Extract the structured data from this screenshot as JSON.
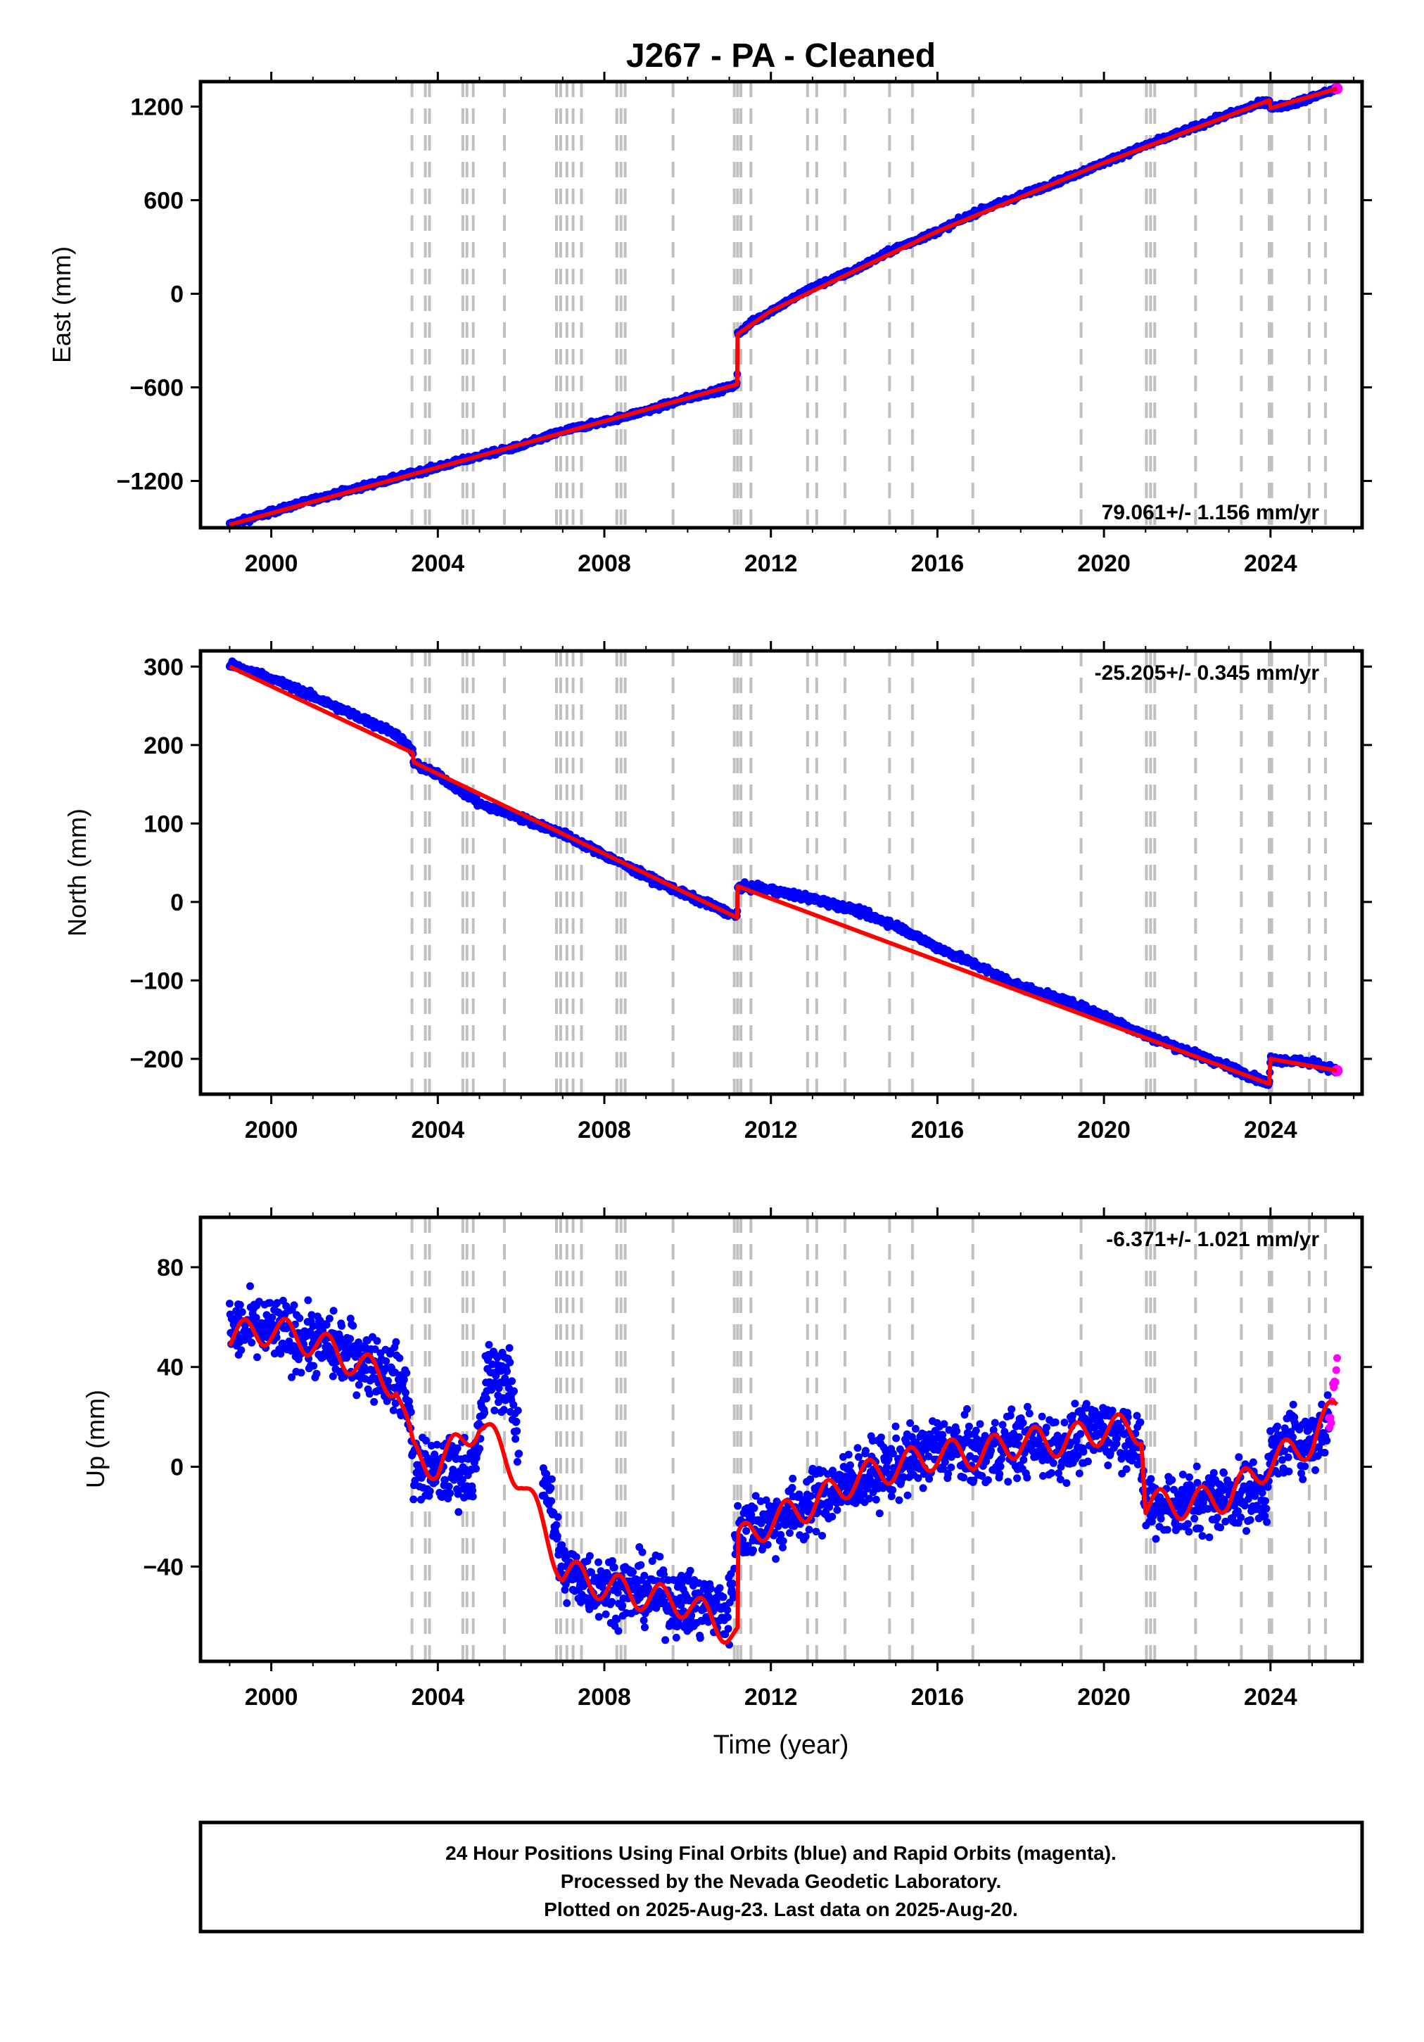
{
  "chart_data": [
    {
      "type": "scatter",
      "panel": "east",
      "title": "J267  - PA - Cleaned",
      "ylabel": "East (mm)",
      "xlabel": "",
      "xlim": [
        1998.3,
        2026.2
      ],
      "ylim": [
        -1500,
        1360
      ],
      "xticks": [
        2000,
        2004,
        2008,
        2012,
        2016,
        2020,
        2024
      ],
      "xtick_labels": [
        "2000",
        "2004",
        "2008",
        "2012",
        "2016",
        "2020",
        "2024"
      ],
      "yticks": [
        -1200,
        -600,
        0,
        600,
        1200
      ],
      "ytick_labels": [
        "−1200",
        "−600",
        "0",
        "600",
        "1200"
      ],
      "rate_label": "79.061+/- 1.156 mm/yr",
      "rate_position": "bottom-right",
      "grid": false,
      "series": [
        {
          "values": [
            [
              1999.0,
              -1480
            ],
            [
              2000.0,
              -1400
            ],
            [
              2001.0,
              -1320
            ],
            [
              2002.0,
              -1250
            ],
            [
              2003.0,
              -1180
            ],
            [
              2004.0,
              -1110
            ],
            [
              2005.0,
              -1040
            ],
            [
              2006.0,
              -975
            ],
            [
              2007.0,
              -880
            ],
            [
              2008.0,
              -820
            ],
            [
              2009.0,
              -750
            ],
            [
              2010.0,
              -670
            ],
            [
              2011.0,
              -600
            ],
            [
              2011.19,
              -580
            ],
            [
              2011.2,
              -260
            ],
            [
              2011.5,
              -190
            ],
            [
              2012.0,
              -110
            ],
            [
              2013.0,
              40
            ],
            [
              2014.0,
              150
            ],
            [
              2015.0,
              290
            ],
            [
              2016.0,
              400
            ],
            [
              2017.0,
              530
            ],
            [
              2018.0,
              630
            ],
            [
              2019.0,
              730
            ],
            [
              2020.0,
              840
            ],
            [
              2021.0,
              950
            ],
            [
              2022.0,
              1050
            ],
            [
              2023.0,
              1150
            ],
            [
              2023.97,
              1240
            ],
            [
              2024.0,
              1190
            ],
            [
              2024.5,
              1215
            ],
            [
              2025.0,
              1260
            ],
            [
              2025.6,
              1315
            ]
          ]
        },
        {
          "values": [
            [
              1999.0,
              -1480
            ],
            [
              2005.0,
              -1040
            ],
            [
              2011.19,
              -580
            ],
            [
              2011.2,
              -260
            ],
            [
              2012.0,
              -110
            ],
            [
              2016.0,
              400
            ],
            [
              2020.0,
              840
            ],
            [
              2023.97,
              1240
            ],
            [
              2024.0,
              1190
            ],
            [
              2025.6,
              1315
            ]
          ]
        }
      ]
    },
    {
      "type": "scatter",
      "panel": "north",
      "ylabel": "North (mm)",
      "xlabel": "",
      "xlim": [
        1998.3,
        2026.2
      ],
      "ylim": [
        -245,
        320
      ],
      "xticks": [
        2000,
        2004,
        2008,
        2012,
        2016,
        2020,
        2024
      ],
      "xtick_labels": [
        "2000",
        "2004",
        "2008",
        "2012",
        "2016",
        "2020",
        "2024"
      ],
      "yticks": [
        -200,
        -100,
        0,
        100,
        200,
        300
      ],
      "ytick_labels": [
        "−200",
        "−100",
        "0",
        "100",
        "200",
        "300"
      ],
      "rate_label": "-25.205+/- 0.345 mm/yr",
      "rate_position": "top-right",
      "grid": false,
      "series": [
        {
          "values": [
            [
              1999.0,
              303
            ],
            [
              2000.0,
              285
            ],
            [
              2001.0,
              262
            ],
            [
              2002.0,
              238
            ],
            [
              2003.0,
              214
            ],
            [
              2003.4,
              192
            ],
            [
              2003.42,
              176
            ],
            [
              2004.0,
              162
            ],
            [
              2005.0,
              125
            ],
            [
              2006.0,
              107
            ],
            [
              2007.0,
              87
            ],
            [
              2008.0,
              60
            ],
            [
              2009.0,
              33
            ],
            [
              2010.0,
              8
            ],
            [
              2011.0,
              -14
            ],
            [
              2011.19,
              -20
            ],
            [
              2011.2,
              20
            ],
            [
              2012.0,
              15
            ],
            [
              2013.0,
              4
            ],
            [
              2014.0,
              -10
            ],
            [
              2015.0,
              -30
            ],
            [
              2016.0,
              -58
            ],
            [
              2017.0,
              -82
            ],
            [
              2018.0,
              -108
            ],
            [
              2019.0,
              -125
            ],
            [
              2020.0,
              -145
            ],
            [
              2021.0,
              -170
            ],
            [
              2022.0,
              -190
            ],
            [
              2023.0,
              -210
            ],
            [
              2023.97,
              -232
            ],
            [
              2024.0,
              -200
            ],
            [
              2025.0,
              -205
            ],
            [
              2025.6,
              -215
            ]
          ]
        },
        {
          "values": [
            [
              1999.0,
              300
            ],
            [
              2003.4,
              190
            ],
            [
              2003.42,
              178
            ],
            [
              2011.19,
              -20
            ],
            [
              2011.2,
              20
            ],
            [
              2023.97,
              -232
            ],
            [
              2024.0,
              -200
            ],
            [
              2025.6,
              -215
            ]
          ]
        }
      ]
    },
    {
      "type": "scatter",
      "panel": "up",
      "ylabel": "Up (mm)",
      "xlabel": "Time (year)",
      "xlim": [
        1998.3,
        2026.2
      ],
      "ylim": [
        -78,
        100
      ],
      "xticks": [
        2000,
        2004,
        2008,
        2012,
        2016,
        2020,
        2024
      ],
      "xtick_labels": [
        "2000",
        "2004",
        "2008",
        "2012",
        "2016",
        "2020",
        "2024"
      ],
      "yticks": [
        -40,
        0,
        40,
        80
      ],
      "ytick_labels": [
        "−40",
        "0",
        "40",
        "80"
      ],
      "rate_label": "-6.371+/- 1.021 mm/yr",
      "rate_position": "top-right",
      "grid": false,
      "series": [
        {
          "values": [
            [
              1999.0,
              55
            ],
            [
              2000.0,
              55
            ],
            [
              2001.0,
              50
            ],
            [
              2002.0,
              45
            ],
            [
              2003.0,
              35
            ],
            [
              2003.3,
              28
            ],
            [
              2003.4,
              0
            ],
            [
              2004.0,
              -3
            ],
            [
              2004.9,
              0
            ],
            [
              2005.2,
              38
            ],
            [
              2005.7,
              35
            ],
            [
              2006.0,
              4
            ],
            [
              2006.6,
              -5
            ],
            [
              2007.0,
              -42
            ],
            [
              2008.0,
              -48
            ],
            [
              2009.0,
              -50
            ],
            [
              2010.0,
              -55
            ],
            [
              2011.0,
              -58
            ],
            [
              2011.2,
              -25
            ],
            [
              2012.0,
              -22
            ],
            [
              2013.0,
              -15
            ],
            [
              2014.0,
              -5
            ],
            [
              2015.0,
              0
            ],
            [
              2016.0,
              8
            ],
            [
              2017.0,
              5
            ],
            [
              2018.0,
              10
            ],
            [
              2019.0,
              8
            ],
            [
              2020.0,
              15
            ],
            [
              2020.8,
              12
            ],
            [
              2021.0,
              -15
            ],
            [
              2022.0,
              -15
            ],
            [
              2023.0,
              -12
            ],
            [
              2023.9,
              -10
            ],
            [
              2024.0,
              3
            ],
            [
              2024.5,
              12
            ],
            [
              2025.0,
              10
            ],
            [
              2025.4,
              18
            ]
          ]
        },
        {
          "values": [
            [
              2025.4,
              18
            ],
            [
              2025.5,
              28
            ],
            [
              2025.6,
              42
            ]
          ]
        },
        {
          "values": [
            [
              1999.0,
              52
            ],
            [
              2000.0,
              55
            ],
            [
              2001.0,
              50
            ],
            [
              2002.0,
              42
            ],
            [
              2003.0,
              33
            ],
            [
              2003.4,
              5
            ],
            [
              2004.0,
              0
            ],
            [
              2005.0,
              18
            ],
            [
              2006.0,
              -5
            ],
            [
              2007.0,
              -42
            ],
            [
              2008.0,
              -48
            ],
            [
              2009.0,
              -52
            ],
            [
              2010.0,
              -55
            ],
            [
              2011.2,
              -68
            ],
            [
              2011.22,
              -30
            ],
            [
              2012.0,
              -22
            ],
            [
              2013.0,
              -15
            ],
            [
              2014.0,
              -5
            ],
            [
              2015.0,
              0
            ],
            [
              2016.0,
              5
            ],
            [
              2017.0,
              5
            ],
            [
              2018.0,
              10
            ],
            [
              2019.0,
              10
            ],
            [
              2020.0,
              15
            ],
            [
              2020.9,
              15
            ],
            [
              2021.0,
              -15
            ],
            [
              2022.0,
              -15
            ],
            [
              2023.0,
              -12
            ],
            [
              2024.0,
              2
            ],
            [
              2025.0,
              10
            ],
            [
              2025.6,
              25
            ]
          ]
        }
      ]
    }
  ],
  "reference_lines": [
    2003.38,
    2003.7,
    2003.8,
    2004.6,
    2004.7,
    2004.85,
    2005.6,
    2006.85,
    2006.95,
    2007.1,
    2007.25,
    2007.45,
    2008.3,
    2008.4,
    2008.5,
    2009.65,
    2011.12,
    2011.2,
    2011.28,
    2011.52,
    2012.88,
    2013.1,
    2013.78,
    2014.85,
    2015.4,
    2016.85,
    2019.45,
    2021.02,
    2021.12,
    2021.22,
    2022.2,
    2023.3,
    2023.97,
    2024.03,
    2024.93,
    2025.32
  ],
  "colors": {
    "final_orbits": "#0000ff",
    "rapid_orbits": "#ff00ff",
    "model_fit": "#ff0000",
    "reference_lines": "#c0c0c0"
  },
  "footer": {
    "line1": "24 Hour Positions Using Final Orbits (blue) and Rapid Orbits (magenta).",
    "line2": "Processed by the Nevada Geodetic Laboratory.",
    "line3": "Plotted on 2025-Aug-23. Last data on 2025-Aug-20."
  }
}
